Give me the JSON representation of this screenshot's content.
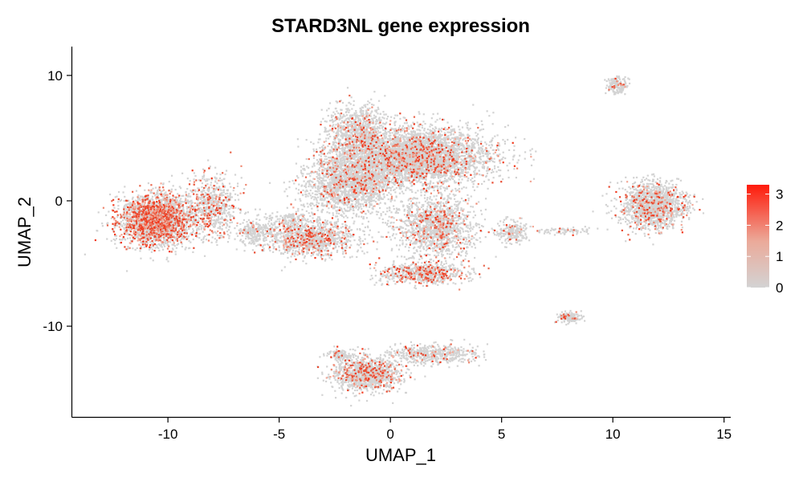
{
  "chart_data": {
    "type": "scatter",
    "title": "STARD3NL gene expression",
    "xlabel": "UMAP_1",
    "ylabel": "UMAP_2",
    "xlim": [
      -14.3,
      15.3
    ],
    "ylim": [
      -17.3,
      12.3
    ],
    "xticks": [
      -10,
      -5,
      0,
      5,
      10,
      15
    ],
    "yticks": [
      -10,
      0,
      10
    ],
    "xtick_labels": [
      "-10",
      "-5",
      "0",
      "5",
      "10",
      "15"
    ],
    "ytick_labels": [
      "-10",
      "0",
      "10"
    ],
    "grid": false,
    "legend": {
      "placement": "right",
      "min": 0,
      "max": 3.3,
      "ticks": [
        0,
        1,
        2,
        3
      ],
      "tick_labels": [
        "0",
        "1",
        "2",
        "3"
      ],
      "low_color": "#d3d3d3",
      "high_color": "#ff0000"
    },
    "clusters": [
      {
        "center": [
          -10.5,
          -1.5
        ],
        "spread": [
          1.5,
          1.8
        ],
        "count": 2600,
        "high_fraction": 0.33
      },
      {
        "center": [
          -8.0,
          -0.5
        ],
        "spread": [
          1.0,
          2.2
        ],
        "count": 700,
        "high_fraction": 0.2
      },
      {
        "center": [
          -6.0,
          -2.5
        ],
        "spread": [
          0.9,
          1.0
        ],
        "count": 300,
        "high_fraction": 0.06
      },
      {
        "center": [
          -3.5,
          -3.0
        ],
        "spread": [
          1.8,
          1.3
        ],
        "count": 1100,
        "high_fraction": 0.18
      },
      {
        "center": [
          -1.5,
          5.5
        ],
        "spread": [
          1.3,
          2.0
        ],
        "count": 900,
        "high_fraction": 0.1
      },
      {
        "center": [
          1.2,
          3.5
        ],
        "spread": [
          2.8,
          2.0
        ],
        "count": 4200,
        "high_fraction": 0.12
      },
      {
        "center": [
          -1.8,
          1.5
        ],
        "spread": [
          1.8,
          2.3
        ],
        "count": 2000,
        "high_fraction": 0.1
      },
      {
        "center": [
          2.0,
          -2.0
        ],
        "spread": [
          1.6,
          2.2
        ],
        "count": 1400,
        "high_fraction": 0.12
      },
      {
        "center": [
          1.5,
          -5.8
        ],
        "spread": [
          1.8,
          0.8
        ],
        "count": 700,
        "high_fraction": 0.25
      },
      {
        "center": [
          -1.0,
          -13.8
        ],
        "spread": [
          1.4,
          1.2
        ],
        "count": 1200,
        "high_fraction": 0.15
      },
      {
        "center": [
          2.0,
          -12.2
        ],
        "spread": [
          1.8,
          0.7
        ],
        "count": 500,
        "high_fraction": 0.1
      },
      {
        "center": [
          -2.2,
          -12.3
        ],
        "spread": [
          0.6,
          0.4
        ],
        "count": 120,
        "high_fraction": 0.12
      },
      {
        "center": [
          11.8,
          -0.4
        ],
        "spread": [
          1.3,
          1.6
        ],
        "count": 1500,
        "high_fraction": 0.14
      },
      {
        "center": [
          10.2,
          9.2
        ],
        "spread": [
          0.4,
          0.6
        ],
        "count": 160,
        "high_fraction": 0.08
      },
      {
        "center": [
          8.0,
          -9.3
        ],
        "spread": [
          0.5,
          0.4
        ],
        "count": 130,
        "high_fraction": 0.1
      },
      {
        "center": [
          5.5,
          -2.5
        ],
        "spread": [
          0.6,
          0.8
        ],
        "count": 200,
        "high_fraction": 0.1
      },
      {
        "center": [
          8.0,
          -2.4
        ],
        "spread": [
          1.3,
          0.25
        ],
        "count": 80,
        "high_fraction": 0.05
      },
      {
        "center": [
          -4.5,
          -1.5
        ],
        "spread": [
          0.8,
          0.7
        ],
        "count": 150,
        "high_fraction": 0.05
      }
    ]
  }
}
